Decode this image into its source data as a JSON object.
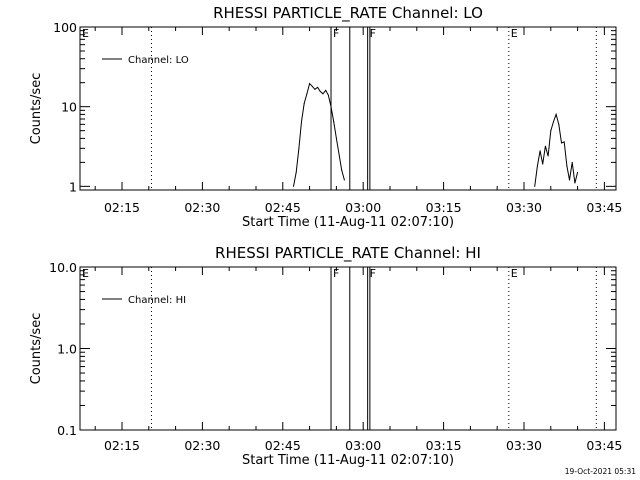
{
  "chart_data": [
    {
      "type": "line",
      "title": "RHESSI PARTICLE_RATE Channel: LO",
      "xlabel": "Start Time (11-Aug-11 02:07:10)",
      "ylabel": "Counts/sec",
      "y_scale": "log",
      "ylim": [
        0.9,
        100
      ],
      "xlim": [
        "02:07:10",
        "03:47:10"
      ],
      "x_ticks": [
        "02:15",
        "02:30",
        "02:45",
        "03:00",
        "03:15",
        "03:30",
        "03:45"
      ],
      "y_ticks": [
        {
          "value": 100,
          "label": "100"
        },
        {
          "value": 10,
          "label": "10"
        },
        {
          "value": 1,
          "label": "1"
        }
      ],
      "grid": false,
      "legend_position": "top-left",
      "series": [
        {
          "name": "Channel: LO",
          "segments": [
            {
              "x": [
                "02:47:00",
                "02:47:30",
                "02:48:00",
                "02:48:30",
                "02:49:00",
                "02:49:30",
                "02:50:00",
                "02:50:30",
                "02:51:00",
                "02:51:30",
                "02:52:00",
                "02:52:30",
                "02:53:00",
                "02:53:30",
                "02:54:00",
                "02:54:30",
                "02:55:00",
                "02:55:30",
                "02:56:00",
                "02:56:30"
              ],
              "y": [
                1.0,
                1.5,
                3.0,
                6.5,
                11.0,
                14.5,
                19.5,
                18.0,
                16.5,
                17.5,
                15.5,
                14.5,
                16.0,
                14.0,
                10.0,
                6.5,
                4.0,
                2.5,
                1.6,
                1.2
              ]
            },
            {
              "x": [
                "03:32:00",
                "03:32:30",
                "03:33:00",
                "03:33:30",
                "03:34:00",
                "03:34:30",
                "03:35:00",
                "03:35:30",
                "03:36:00",
                "03:36:30",
                "03:37:00",
                "03:37:30",
                "03:38:00",
                "03:38:30",
                "03:39:00",
                "03:39:30",
                "03:40:00"
              ],
              "y": [
                1.0,
                1.8,
                2.8,
                1.9,
                3.2,
                2.4,
                5.0,
                6.5,
                8.0,
                6.0,
                3.5,
                3.6,
                1.8,
                1.2,
                2.0,
                1.1,
                1.5
              ]
            }
          ]
        }
      ],
      "markers": [
        {
          "time": "02:20:30",
          "style": "dotted"
        },
        {
          "time": "02:54:00",
          "style": "solid",
          "label": "F"
        },
        {
          "time": "02:57:30",
          "style": "solid"
        },
        {
          "time": "03:00:50",
          "style": "solid",
          "label": "F"
        },
        {
          "time": "03:01:15",
          "style": "solid"
        },
        {
          "time": "03:27:10",
          "style": "dotted",
          "label": "E"
        },
        {
          "time": "03:43:30",
          "style": "dotted"
        }
      ],
      "corner_label": "E"
    },
    {
      "type": "line",
      "title": "RHESSI PARTICLE_RATE Channel: HI",
      "xlabel": "Start Time (11-Aug-11 02:07:10)",
      "ylabel": "Counts/sec",
      "y_scale": "log",
      "ylim": [
        0.1,
        10
      ],
      "xlim": [
        "02:07:10",
        "03:47:10"
      ],
      "x_ticks": [
        "02:15",
        "02:30",
        "02:45",
        "03:00",
        "03:15",
        "03:30",
        "03:45"
      ],
      "y_ticks": [
        {
          "value": 10,
          "label": "10.0"
        },
        {
          "value": 1,
          "label": "1.0"
        },
        {
          "value": 0.1,
          "label": "0.1"
        }
      ],
      "grid": false,
      "legend_position": "top-left",
      "series": [
        {
          "name": "Channel: HI",
          "segments": []
        }
      ],
      "markers": [
        {
          "time": "02:20:30",
          "style": "dotted"
        },
        {
          "time": "02:54:00",
          "style": "solid",
          "label": "F"
        },
        {
          "time": "02:57:30",
          "style": "solid"
        },
        {
          "time": "03:00:50",
          "style": "solid",
          "label": "F"
        },
        {
          "time": "03:01:15",
          "style": "solid"
        },
        {
          "time": "03:27:10",
          "style": "dotted",
          "label": "E"
        },
        {
          "time": "03:43:30",
          "style": "dotted"
        }
      ],
      "corner_label": "E"
    }
  ],
  "footer": {
    "timestamp": "19-Oct-2021 05:31"
  }
}
